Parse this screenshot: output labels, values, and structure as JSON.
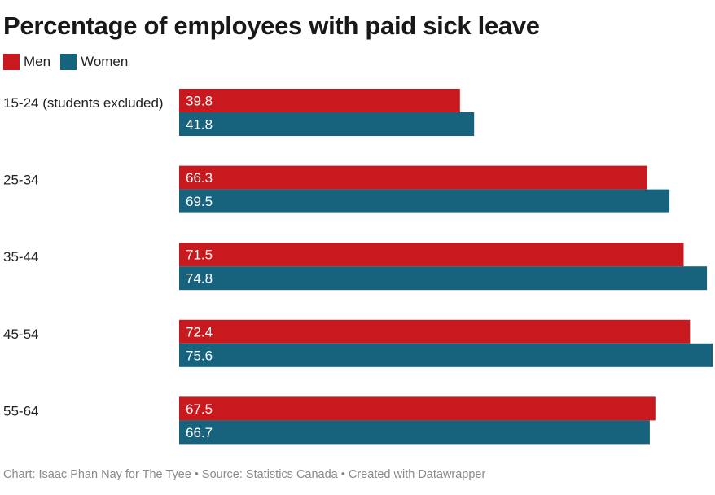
{
  "chart_data": {
    "type": "bar",
    "orientation": "horizontal",
    "title": "Percentage of employees with paid sick leave",
    "categories": [
      "15-24 (students excluded)",
      "25-34",
      "35-44",
      "45-54",
      "55-64"
    ],
    "series": [
      {
        "name": "Men",
        "color": "#c8191f",
        "values": [
          39.8,
          66.3,
          71.5,
          72.4,
          67.5
        ]
      },
      {
        "name": "Women",
        "color": "#17627d",
        "values": [
          41.8,
          69.5,
          74.8,
          75.6,
          66.7
        ]
      }
    ],
    "xlim": [
      0,
      75.6
    ],
    "grid": false,
    "legend_position": "top-left"
  },
  "footer": {
    "credit": "Chart: Isaac Phan Nay for The Tyee • Source: Statistics Canada • Created with Datawrapper"
  }
}
